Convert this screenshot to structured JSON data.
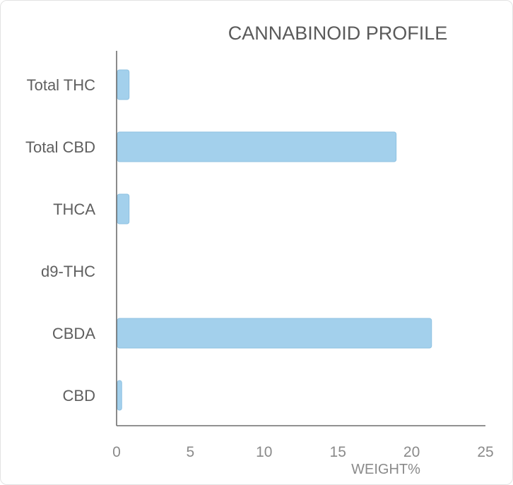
{
  "chart_data": {
    "type": "bar",
    "orientation": "horizontal",
    "title": "CANNABINOID PROFILE",
    "xlabel": "WEIGHT%",
    "ylabel": "",
    "categories": [
      "Total THC",
      "Total CBD",
      "THCA",
      "d9-THC",
      "CBDA",
      "CBD"
    ],
    "values": [
      0.8,
      18.9,
      0.8,
      0,
      21.3,
      0.3
    ],
    "xlim": [
      0,
      25
    ],
    "xticks": [
      "0",
      "5",
      "10",
      "15",
      "20",
      "25"
    ],
    "grid": false,
    "legend": "none",
    "bar_color": "#a3d0ec"
  }
}
